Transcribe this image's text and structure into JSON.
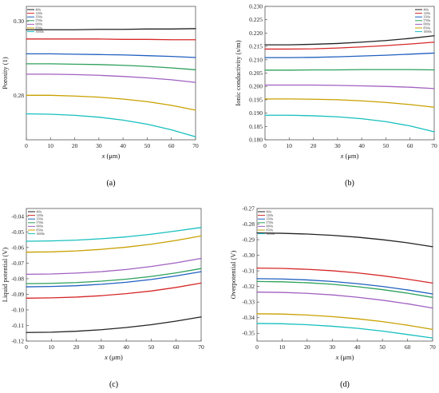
{
  "figure": {
    "panels": [
      {
        "id": "a",
        "label": "(a)"
      },
      {
        "id": "b",
        "label": "(b)"
      },
      {
        "id": "c",
        "label": "(c)"
      },
      {
        "id": "d",
        "label": "(d)"
      }
    ]
  },
  "chart_data": [
    {
      "id": "a",
      "type": "line",
      "title": "",
      "xlabel_prefix": "x",
      "xlabel_unit": " (μm)",
      "ylabel": "Porosity (1)",
      "xlim": [
        0,
        70
      ],
      "ylim": [
        0.268,
        0.304
      ],
      "xticks": [
        0,
        10,
        20,
        30,
        40,
        50,
        60,
        70
      ],
      "yticks": [
        0.28,
        0.3
      ],
      "ytick_labels": [
        "0.28",
        "0.30"
      ],
      "grid": false,
      "legend_position": "top-left",
      "series": [
        {
          "name": "400s",
          "color": "#222222",
          "y": [
            0.2977,
            0.2977,
            0.2977,
            0.2978,
            0.2978,
            0.2979,
            0.2979,
            0.298
          ]
        },
        {
          "name": "1200s",
          "color": "#d62728",
          "y": [
            0.2952,
            0.2952,
            0.2952,
            0.2952,
            0.2951,
            0.2951,
            0.295,
            0.295
          ]
        },
        {
          "name": "3500s",
          "color": "#1f5fbf",
          "y": [
            0.2912,
            0.2912,
            0.2911,
            0.291,
            0.2909,
            0.2907,
            0.2905,
            0.2902
          ]
        },
        {
          "name": "5700s",
          "color": "#2ca05a",
          "y": [
            0.2885,
            0.2885,
            0.2884,
            0.2883,
            0.2881,
            0.2878,
            0.2874,
            0.2869
          ]
        },
        {
          "name": "6800s",
          "color": "#a060c0",
          "y": [
            0.2857,
            0.2857,
            0.2856,
            0.2854,
            0.2851,
            0.2847,
            0.2842,
            0.2835
          ]
        },
        {
          "name": "8500s",
          "color": "#c8a000",
          "y": [
            0.28,
            0.28,
            0.2798,
            0.2795,
            0.279,
            0.2783,
            0.2773,
            0.276
          ]
        },
        {
          "name": "10000s",
          "color": "#17bfbf",
          "y": [
            0.275,
            0.2749,
            0.2746,
            0.2741,
            0.2733,
            0.2722,
            0.2707,
            0.2688
          ]
        }
      ]
    },
    {
      "id": "b",
      "type": "line",
      "title": "",
      "xlabel_prefix": "x",
      "xlabel_unit": " (μm)",
      "ylabel": "Ionic conductivity (s/m)",
      "xlim": [
        0,
        70
      ],
      "ylim": [
        0.18,
        0.23
      ],
      "xticks": [
        0,
        10,
        20,
        30,
        40,
        50,
        60,
        70
      ],
      "yticks": [
        0.18,
        0.185,
        0.19,
        0.195,
        0.2,
        0.205,
        0.21,
        0.215,
        0.22,
        0.225,
        0.23
      ],
      "ytick_labels": [
        "0.180",
        "0.185",
        "0.190",
        "0.195",
        "0.200",
        "0.205",
        "0.210",
        "0.215",
        "0.220",
        "0.225",
        "0.230"
      ],
      "grid": false,
      "legend_position": "top-right",
      "series": [
        {
          "name": "400s",
          "color": "#222222",
          "y": [
            0.2156,
            0.2156,
            0.2158,
            0.2161,
            0.2166,
            0.2172,
            0.218,
            0.219
          ]
        },
        {
          "name": "1200s",
          "color": "#d62728",
          "y": [
            0.214,
            0.214,
            0.2141,
            0.2144,
            0.2148,
            0.2153,
            0.2159,
            0.2166
          ]
        },
        {
          "name": "3500s",
          "color": "#1f5fbf",
          "y": [
            0.2108,
            0.2108,
            0.2109,
            0.2111,
            0.2114,
            0.2117,
            0.2121,
            0.2125
          ]
        },
        {
          "name": "5700s",
          "color": "#2ca05a",
          "y": [
            0.2061,
            0.2061,
            0.2062,
            0.2062,
            0.2063,
            0.2063,
            0.2063,
            0.2062
          ]
        },
        {
          "name": "6800s",
          "color": "#a060c0",
          "y": [
            0.2005,
            0.2005,
            0.2005,
            0.2004,
            0.2002,
            0.2,
            0.1997,
            0.1992
          ]
        },
        {
          "name": "8500s",
          "color": "#c8a000",
          "y": [
            0.1953,
            0.1953,
            0.1952,
            0.195,
            0.1946,
            0.194,
            0.1932,
            0.1922
          ]
        },
        {
          "name": "10000s",
          "color": "#17bfbf",
          "y": [
            0.1892,
            0.1892,
            0.189,
            0.1886,
            0.1879,
            0.1868,
            0.1852,
            0.183
          ]
        }
      ]
    },
    {
      "id": "c",
      "type": "line",
      "title": "",
      "xlabel_prefix": "x",
      "xlabel_unit": " (μm)",
      "ylabel": "Liquid potential (V)",
      "xlim": [
        0,
        70
      ],
      "ylim": [
        -0.12,
        -0.035
      ],
      "xticks": [
        0,
        10,
        20,
        30,
        40,
        50,
        60,
        70
      ],
      "yticks": [
        -0.12,
        -0.11,
        -0.1,
        -0.09,
        -0.08,
        -0.07,
        -0.06,
        -0.05,
        -0.04
      ],
      "ytick_labels": [
        "-0.12",
        "-0.11",
        "-0.10",
        "-0.09",
        "-0.08",
        "-0.07",
        "-0.06",
        "-0.05",
        "-0.04"
      ],
      "grid": false,
      "legend_position": "top-left",
      "series": [
        {
          "name": "400s",
          "color": "#222222",
          "y": [
            -0.1145,
            -0.1143,
            -0.1137,
            -0.1127,
            -0.1113,
            -0.1095,
            -0.1072,
            -0.1045
          ]
        },
        {
          "name": "1200s",
          "color": "#d62728",
          "y": [
            -0.0925,
            -0.0923,
            -0.0918,
            -0.0909,
            -0.0896,
            -0.0879,
            -0.0856,
            -0.0828
          ]
        },
        {
          "name": "3500s",
          "color": "#1f5fbf",
          "y": [
            -0.0852,
            -0.085,
            -0.0845,
            -0.0836,
            -0.0823,
            -0.0805,
            -0.0782,
            -0.0755
          ]
        },
        {
          "name": "5700s",
          "color": "#2ca05a",
          "y": [
            -0.0832,
            -0.083,
            -0.0825,
            -0.0816,
            -0.0803,
            -0.0786,
            -0.0763,
            -0.0735
          ]
        },
        {
          "name": "6800s",
          "color": "#a060c0",
          "y": [
            -0.0772,
            -0.077,
            -0.0764,
            -0.0755,
            -0.0741,
            -0.0722,
            -0.0698,
            -0.067
          ]
        },
        {
          "name": "8500s",
          "color": "#c8a000",
          "y": [
            -0.063,
            -0.0628,
            -0.0622,
            -0.0612,
            -0.0598,
            -0.0579,
            -0.0555,
            -0.0526
          ]
        },
        {
          "name": "10000s",
          "color": "#17bfbf",
          "y": [
            -0.056,
            -0.0558,
            -0.0553,
            -0.0544,
            -0.0532,
            -0.0515,
            -0.0494,
            -0.0472
          ]
        }
      ]
    },
    {
      "id": "d",
      "type": "line",
      "title": "",
      "xlabel_prefix": "x",
      "xlabel_unit": " (μm)",
      "ylabel": "Overpotential (V)",
      "xlim": [
        0,
        70
      ],
      "ylim": [
        -0.355,
        -0.27
      ],
      "xticks": [
        0,
        10,
        20,
        30,
        40,
        50,
        60,
        70
      ],
      "yticks": [
        -0.35,
        -0.34,
        -0.33,
        -0.32,
        -0.31,
        -0.3,
        -0.29,
        -0.28,
        -0.27
      ],
      "ytick_labels": [
        "-0.35",
        "-0.34",
        "-0.33",
        "-0.32",
        "-0.31",
        "-0.30",
        "-0.29",
        "-0.28",
        "-0.27"
      ],
      "grid": false,
      "legend_position": "top-left",
      "series": [
        {
          "name": "400s",
          "color": "#222222",
          "y": [
            -0.2857,
            -0.2859,
            -0.2864,
            -0.2872,
            -0.2884,
            -0.29,
            -0.292,
            -0.2945
          ]
        },
        {
          "name": "1200s",
          "color": "#d62728",
          "y": [
            -0.3082,
            -0.3084,
            -0.309,
            -0.3099,
            -0.3113,
            -0.3131,
            -0.3153,
            -0.3178
          ]
        },
        {
          "name": "3500s",
          "color": "#1f5fbf",
          "y": [
            -0.315,
            -0.3152,
            -0.3158,
            -0.3168,
            -0.3182,
            -0.32,
            -0.3222,
            -0.3248
          ]
        },
        {
          "name": "5700s",
          "color": "#2ca05a",
          "y": [
            -0.3168,
            -0.317,
            -0.3176,
            -0.3186,
            -0.3201,
            -0.322,
            -0.3243,
            -0.327
          ]
        },
        {
          "name": "6800s",
          "color": "#a060c0",
          "y": [
            -0.3236,
            -0.3238,
            -0.3244,
            -0.3254,
            -0.3269,
            -0.3288,
            -0.3311,
            -0.3338
          ]
        },
        {
          "name": "8500s",
          "color": "#c8a000",
          "y": [
            -0.3375,
            -0.3377,
            -0.3383,
            -0.3393,
            -0.3407,
            -0.3425,
            -0.3448,
            -0.3475
          ]
        },
        {
          "name": "10000s",
          "color": "#17bfbf",
          "y": [
            -0.3437,
            -0.3439,
            -0.3445,
            -0.3455,
            -0.3468,
            -0.3486,
            -0.3508,
            -0.353
          ]
        }
      ]
    }
  ]
}
